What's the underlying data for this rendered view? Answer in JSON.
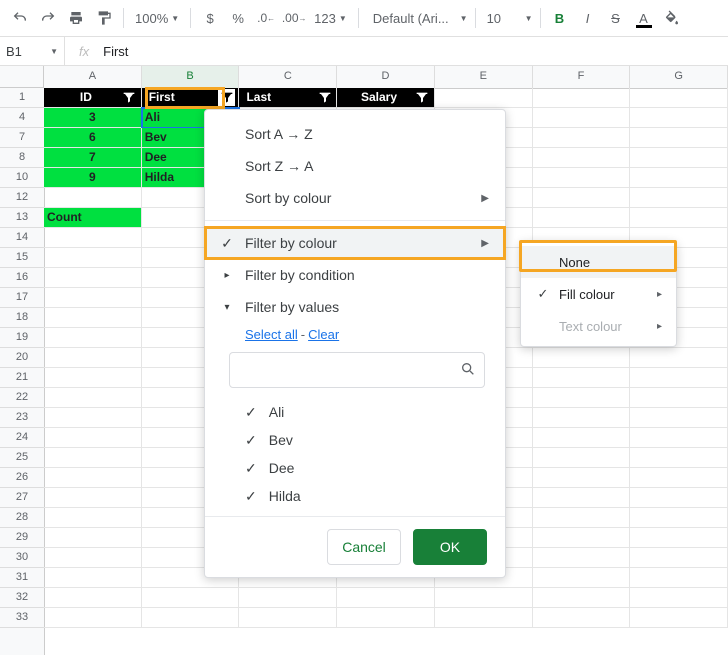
{
  "toolbar": {
    "zoom": "100%",
    "more_formats": "123",
    "font_name": "Default (Ari...",
    "font_size": "10"
  },
  "namebox": {
    "ref": "B1",
    "formula": "First"
  },
  "columns": [
    "A",
    "B",
    "C",
    "D",
    "E",
    "F",
    "G"
  ],
  "rows": [
    "1",
    "4",
    "7",
    "8",
    "10",
    "12",
    "13",
    "14",
    "15",
    "16",
    "17",
    "18",
    "19",
    "20",
    "21",
    "22",
    "23",
    "24",
    "25",
    "26",
    "27",
    "28",
    "29",
    "30",
    "31",
    "32",
    "33"
  ],
  "header_row": {
    "id": "ID",
    "first": "First",
    "last": "Last",
    "salary": "Salary"
  },
  "data_rows": [
    {
      "id": "3",
      "first": "Ali"
    },
    {
      "id": "6",
      "first": "Bev"
    },
    {
      "id": "7",
      "first": "Dee"
    },
    {
      "id": "9",
      "first": "Hilda"
    }
  ],
  "count_label": "Count",
  "menu": {
    "sort_az": "Sort A → Z",
    "sort_za": "Sort Z → A",
    "sort_colour": "Sort by colour",
    "filter_colour": "Filter by colour",
    "filter_condition": "Filter by condition",
    "filter_values": "Filter by values",
    "select_all": "Select all",
    "clear": "Clear",
    "values": [
      "Ali",
      "Bev",
      "Dee",
      "Hilda"
    ],
    "cancel": "Cancel",
    "ok": "OK"
  },
  "submenu": {
    "none": "None",
    "fill": "Fill colour",
    "text": "Text colour"
  },
  "colors": {
    "highlight": "#f5a623",
    "data_bg": "#00e040",
    "primary": "#188038",
    "link": "#1a73e8"
  }
}
